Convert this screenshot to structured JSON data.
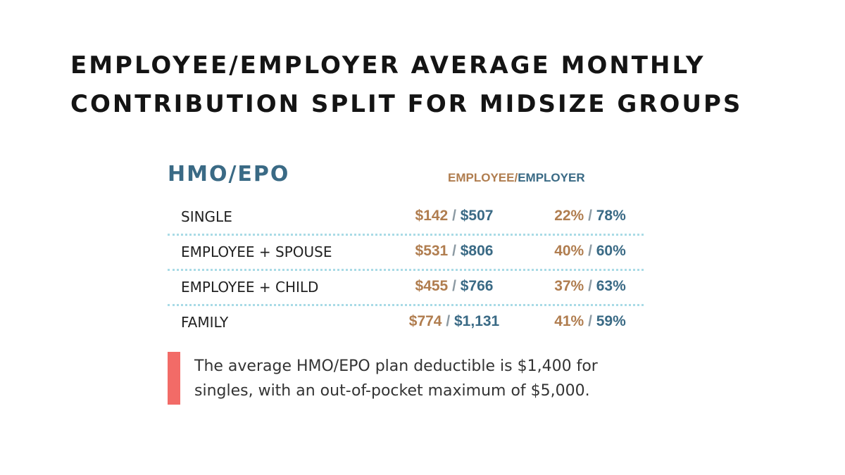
{
  "title": {
    "line1": "EMPLOYEE/EMPLOYER AVERAGE MONTHLY",
    "line2": "CONTRIBUTION SPLIT FOR MIDSIZE GROUPS"
  },
  "plan": {
    "label": "HMO/EPO",
    "header_employee": "EMPLOYEE",
    "header_sep": "/",
    "header_employer": "EMPLOYER"
  },
  "rows": [
    {
      "label": "SINGLE",
      "employee_dollars": "$142",
      "employer_dollars": "$507",
      "employee_pct": "22%",
      "employer_pct": "78%"
    },
    {
      "label": "EMPLOYEE + SPOUSE",
      "employee_dollars": "$531",
      "employer_dollars": "$806",
      "employee_pct": "40%",
      "employer_pct": "60%"
    },
    {
      "label": "EMPLOYEE + CHILD",
      "employee_dollars": "$455",
      "employer_dollars": "$766",
      "employee_pct": "37%",
      "employer_pct": "63%"
    },
    {
      "label": "FAMILY",
      "employee_dollars": "$774",
      "employer_dollars": "$1,131",
      "employee_pct": "41%",
      "employer_pct": "59%"
    }
  ],
  "separator": " / ",
  "note": {
    "line1": "The average HMO/EPO plan deductible is $1,400 for",
    "line2": "singles, with an out-of-pocket maximum of $5,000."
  },
  "colors": {
    "employee": "#b07d4f",
    "employer": "#3a6a85",
    "note_bar": "#f26b67",
    "row_divider": "#a9dbe6"
  }
}
